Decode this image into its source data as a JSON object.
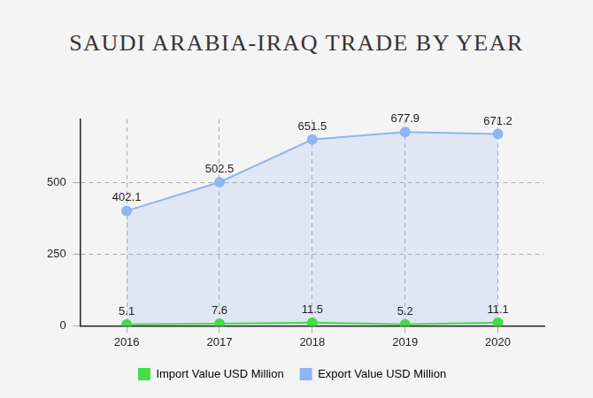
{
  "chart_data": {
    "type": "line",
    "title": "SAUDI ARABIA-IRAQ TRADE BY YEAR",
    "categories": [
      "2016",
      "2017",
      "2018",
      "2019",
      "2020"
    ],
    "series": [
      {
        "name": "Import Value USD Million",
        "color": "#44dd44",
        "values": [
          5.1,
          7.6,
          11.5,
          5.2,
          11.1
        ],
        "marker": "circle",
        "line_style": "solid"
      },
      {
        "name": "Export Value USD Million",
        "color": "#8db6f2",
        "values": [
          402.1,
          502.5,
          651.5,
          677.9,
          671.2
        ],
        "marker": "circle",
        "line_style": "solid"
      }
    ],
    "ylim": [
      0,
      722
    ],
    "yticks": [
      0,
      250,
      500
    ],
    "grid": true,
    "legend": "bottom",
    "data_labels": true
  }
}
